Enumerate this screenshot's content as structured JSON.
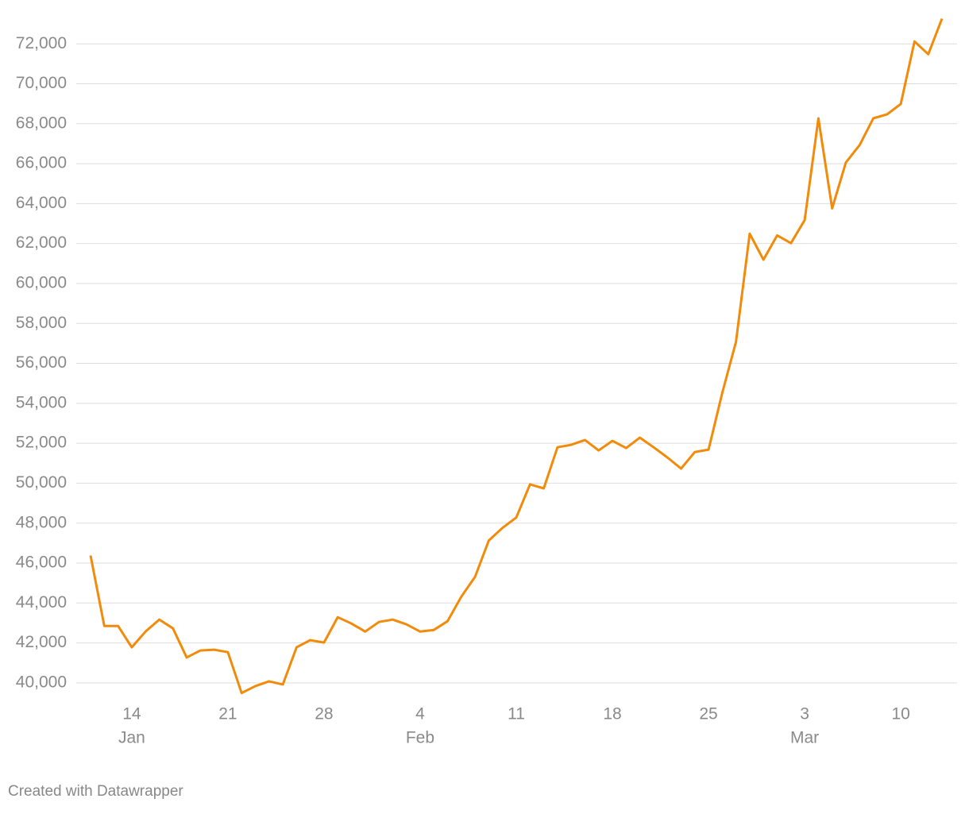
{
  "chart_data": {
    "type": "line",
    "categories": [
      "Jan 11",
      "Jan 12",
      "Jan 13",
      "Jan 14",
      "Jan 15",
      "Jan 16",
      "Jan 17",
      "Jan 18",
      "Jan 19",
      "Jan 20",
      "Jan 21",
      "Jan 22",
      "Jan 23",
      "Jan 24",
      "Jan 25",
      "Jan 26",
      "Jan 27",
      "Jan 28",
      "Jan 29",
      "Jan 30",
      "Jan 31",
      "Feb 1",
      "Feb 2",
      "Feb 3",
      "Feb 4",
      "Feb 5",
      "Feb 6",
      "Feb 7",
      "Feb 8",
      "Feb 9",
      "Feb 10",
      "Feb 11",
      "Feb 12",
      "Feb 13",
      "Feb 14",
      "Feb 15",
      "Feb 16",
      "Feb 17",
      "Feb 18",
      "Feb 19",
      "Feb 20",
      "Feb 21",
      "Feb 22",
      "Feb 23",
      "Feb 24",
      "Feb 25",
      "Feb 26",
      "Feb 27",
      "Feb 28",
      "Feb 29",
      "Mar 1",
      "Mar 2",
      "Mar 3",
      "Mar 4",
      "Mar 5",
      "Mar 6",
      "Mar 7",
      "Mar 8",
      "Mar 9",
      "Mar 10",
      "Mar 11",
      "Mar 12",
      "Mar 13"
    ],
    "values": [
      46380,
      42850,
      42850,
      41780,
      42570,
      43170,
      42730,
      41270,
      41620,
      41660,
      41540,
      39490,
      39840,
      40080,
      39920,
      41780,
      42140,
      42020,
      43290,
      42970,
      42570,
      43050,
      43170,
      42930,
      42570,
      42650,
      43090,
      44320,
      45310,
      47130,
      47760,
      48280,
      49940,
      49740,
      51800,
      51920,
      52160,
      51640,
      52120,
      51760,
      52280,
      51800,
      51290,
      50730,
      51560,
      51680,
      54530,
      57070,
      62490,
      61190,
      62410,
      62020,
      63170,
      68270,
      63760,
      66060,
      66930,
      68270,
      68470,
      68990,
      72120,
      71480,
      73260
    ],
    "color": "#f28a0a",
    "ylim": [
      39200,
      73400
    ],
    "yticks": [
      {
        "value": 40000,
        "label": "40,000"
      },
      {
        "value": 42000,
        "label": "42,000"
      },
      {
        "value": 44000,
        "label": "44,000"
      },
      {
        "value": 46000,
        "label": "46,000"
      },
      {
        "value": 48000,
        "label": "48,000"
      },
      {
        "value": 50000,
        "label": "50,000"
      },
      {
        "value": 52000,
        "label": "52,000"
      },
      {
        "value": 54000,
        "label": "54,000"
      },
      {
        "value": 56000,
        "label": "56,000"
      },
      {
        "value": 58000,
        "label": "58,000"
      },
      {
        "value": 60000,
        "label": "60,000"
      },
      {
        "value": 62000,
        "label": "62,000"
      },
      {
        "value": 64000,
        "label": "64,000"
      },
      {
        "value": 66000,
        "label": "66,000"
      },
      {
        "value": 68000,
        "label": "68,000"
      },
      {
        "value": 70000,
        "label": "70,000"
      },
      {
        "value": 72000,
        "label": "72,000"
      }
    ],
    "xticks": [
      {
        "value": "Jan 14",
        "label": "14"
      },
      {
        "value": "Jan 21",
        "label": "21"
      },
      {
        "value": "Jan 28",
        "label": "28"
      },
      {
        "value": "Feb 4",
        "label": "4"
      },
      {
        "value": "Feb 11",
        "label": "11"
      },
      {
        "value": "Feb 18",
        "label": "18"
      },
      {
        "value": "Feb 25",
        "label": "25"
      },
      {
        "value": "Mar 3",
        "label": "3"
      },
      {
        "value": "Mar 10",
        "label": "10"
      }
    ],
    "month_labels": [
      {
        "value": "Jan 14",
        "label": "Jan"
      },
      {
        "value": "Feb 4",
        "label": "Feb"
      },
      {
        "value": "Mar 3",
        "label": "Mar"
      }
    ],
    "grid": true,
    "credit": "Created with Datawrapper"
  }
}
